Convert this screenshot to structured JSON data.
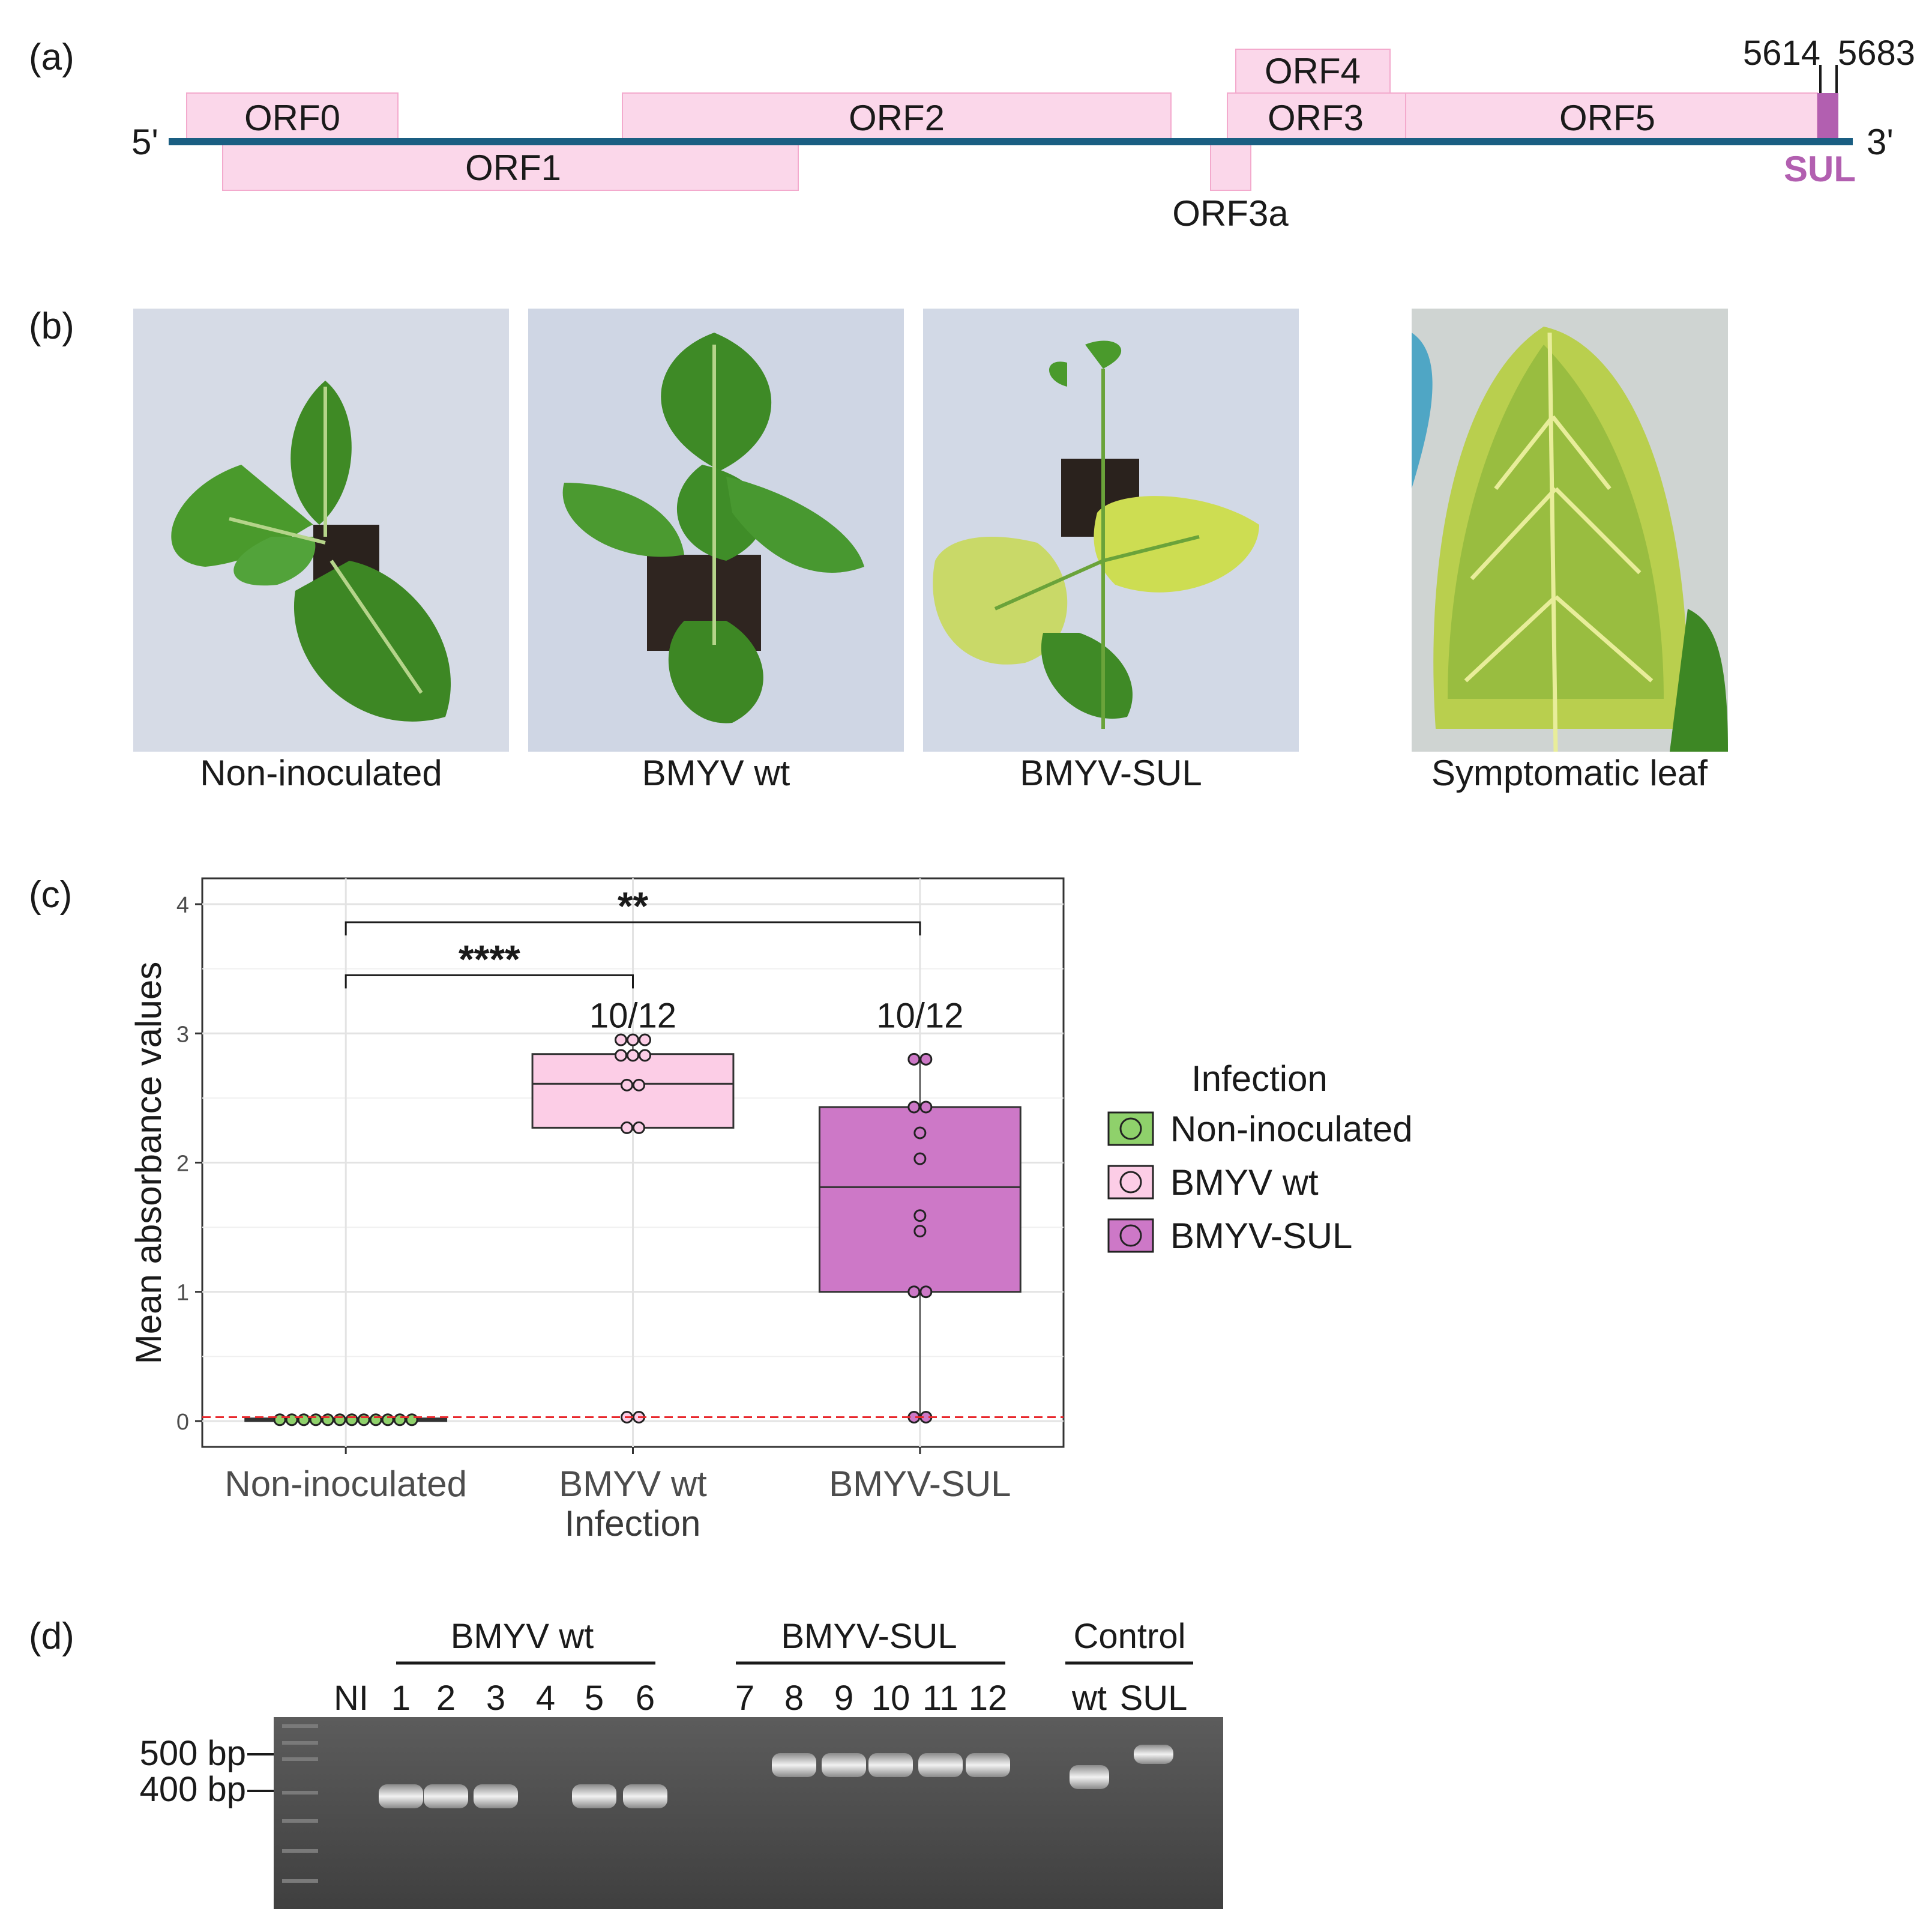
{
  "panels": {
    "a": "(a)",
    "b": "(b)",
    "c": "(c)",
    "d": "(d)"
  },
  "genome": {
    "five_prime": "5'",
    "three_prime": "3'",
    "orfs": [
      "ORF0",
      "ORF1",
      "ORF2",
      "ORF3a",
      "ORF3",
      "ORF4",
      "ORF5"
    ],
    "insert": "SUL",
    "insert_start": "5614",
    "insert_end": "5683",
    "colors": {
      "backbone": "#1a5e82",
      "orf_fill": "#fbd7ea",
      "orf_stroke": "#f3aacd",
      "sul": "#b25fb0"
    }
  },
  "photos": {
    "labels": [
      "Non-inoculated",
      "BMYV wt",
      "BMYV-SUL",
      "Symptomatic leaf"
    ]
  },
  "chart_data": {
    "type": "box",
    "xlabel": "Infection",
    "ylabel": "Mean absorbance values",
    "ylim": [
      -0.2,
      4.2
    ],
    "yticks": [
      0,
      1,
      2,
      3,
      4
    ],
    "grid": true,
    "threshold": 0.03,
    "categories": [
      "Non-inoculated",
      "BMYV wt",
      "BMYV-SUL"
    ],
    "legend": {
      "title": "Infection",
      "position": "right",
      "entries": [
        "Non-inoculated",
        "BMYV wt",
        "BMYV-SUL"
      ]
    },
    "colors": [
      "#8fd16b",
      "#fccde6",
      "#cd78c7"
    ],
    "boxes": [
      {
        "q1": 0.0,
        "median": 0.01,
        "q3": 0.02,
        "whisker_low": 0.0,
        "whisker_high": 0.02
      },
      {
        "q1": 2.27,
        "median": 2.61,
        "q3": 2.84,
        "whisker_low": 2.25,
        "whisker_high": 2.95
      },
      {
        "q1": 1.0,
        "median": 1.81,
        "q3": 2.43,
        "whisker_low": 0.02,
        "whisker_high": 2.8
      }
    ],
    "points": [
      [
        0.01,
        0.01,
        0.01,
        0.01,
        0.01,
        0.01,
        0.01,
        0.01,
        0.01,
        0.01,
        0.01,
        0.01
      ],
      [
        2.95,
        2.95,
        2.95,
        2.83,
        2.83,
        2.83,
        2.6,
        2.6,
        2.27,
        2.27,
        0.03,
        0.03
      ],
      [
        2.8,
        2.8,
        2.43,
        2.43,
        2.23,
        2.03,
        1.59,
        1.47,
        1.0,
        1.0,
        0.03,
        0.03
      ]
    ],
    "count_labels": [
      "",
      "10/12",
      "10/12"
    ],
    "significance": [
      {
        "from": "Non-inoculated",
        "to": "BMYV wt",
        "label": "****"
      },
      {
        "from": "Non-inoculated",
        "to": "BMYV-SUL",
        "label": "**"
      }
    ]
  },
  "gel": {
    "groups": [
      "BMYV wt",
      "BMYV-SUL",
      "Control"
    ],
    "lanes": [
      "NI",
      "1",
      "2",
      "3",
      "4",
      "5",
      "6",
      "7",
      "8",
      "9",
      "10",
      "11",
      "12",
      "wt",
      "SUL"
    ],
    "markers": [
      "500 bp",
      "400 bp"
    ]
  }
}
